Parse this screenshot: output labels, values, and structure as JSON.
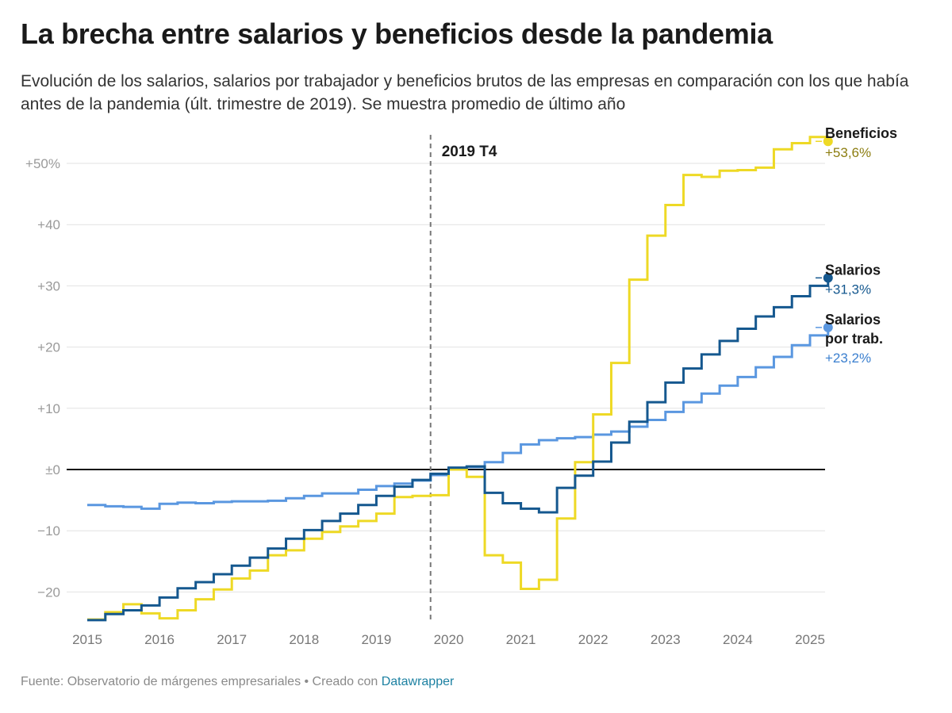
{
  "title": "La brecha entre salarios y beneficios desde la pandemia",
  "subtitle": "Evolución de los salarios, salarios por trabajador y beneficios brutos de las empresas en comparación con los que había antes de la pandemia (últ. trimestre de 2019). Se muestra promedio de último año",
  "footer": {
    "source": "Fuente: Observatorio de márgenes empresariales • Creado con ",
    "credit": "Datawrapper"
  },
  "chart_data": {
    "type": "line",
    "step": true,
    "x_start": 2015.0,
    "x_step": 0.25,
    "xlim": [
      2015,
      2025
    ],
    "ylim": [
      -25,
      55
    ],
    "x_ticks": [
      2015,
      2016,
      2017,
      2018,
      2019,
      2020,
      2021,
      2022,
      2023,
      2024,
      2025
    ],
    "y_ticks": [
      {
        "value": 50,
        "label": "+50%"
      },
      {
        "value": 40,
        "label": "+40"
      },
      {
        "value": 30,
        "label": "+30"
      },
      {
        "value": 20,
        "label": "+20"
      },
      {
        "value": 10,
        "label": "+10"
      },
      {
        "value": 0,
        "label": "±0"
      },
      {
        "value": -10,
        "label": "−10"
      },
      {
        "value": -20,
        "label": "−20"
      }
    ],
    "grid": true,
    "reference_line": {
      "x": 2019.75,
      "label": "2019 T4"
    },
    "colors": {
      "beneficios": "#eed925",
      "salarios": "#15588f",
      "salarios_por_trab": "#5a97e0"
    },
    "series": [
      {
        "key": "beneficios",
        "name": "Beneficios",
        "end_label": "+53,6%",
        "label_color": "#8c7d10",
        "color": "#eed925",
        "values": [
          -24.5,
          -23.3,
          -22,
          -23.5,
          -24.3,
          -23,
          -21.2,
          -19.6,
          -17.8,
          -16.5,
          -14,
          -13.2,
          -11.3,
          -10.2,
          -9.3,
          -8.4,
          -7.2,
          -4.5,
          -4.3,
          -4.2,
          0,
          -1.2,
          -14,
          -15.2,
          -19.5,
          -18,
          -8,
          1.2,
          9,
          17.4,
          31,
          38.2,
          43.2,
          48.1,
          47.8,
          48.8,
          48.9,
          49.3,
          52.3,
          53.3,
          54.3,
          53.6
        ]
      },
      {
        "key": "salarios",
        "name": "Salarios",
        "end_label": "+31,3%",
        "label_color": "#15588f",
        "color": "#15588f",
        "values": [
          -24.6,
          -23.6,
          -23,
          -22.2,
          -20.9,
          -19.4,
          -18.4,
          -17.1,
          -15.7,
          -14.4,
          -12.9,
          -11.3,
          -9.9,
          -8.4,
          -7.2,
          -5.8,
          -4.3,
          -2.8,
          -1.7,
          -0.7,
          0.3,
          0.5,
          -3.8,
          -5.5,
          -6.4,
          -7,
          -3,
          -1,
          1.3,
          4.4,
          7.8,
          11,
          14.2,
          16.5,
          18.8,
          21,
          23,
          25,
          26.5,
          28.3,
          30,
          31.3
        ]
      },
      {
        "key": "salarios_por_trab",
        "name_lines": [
          "Salarios",
          "por trab."
        ],
        "end_label": "+23,2%",
        "label_color": "#3a7fcf",
        "color": "#5a97e0",
        "values": [
          -5.8,
          -6,
          -6.1,
          -6.4,
          -5.6,
          -5.4,
          -5.5,
          -5.3,
          -5.2,
          -5.2,
          -5.1,
          -4.7,
          -4.3,
          -3.9,
          -3.9,
          -3.3,
          -2.7,
          -2.3,
          -1.8,
          -0.9,
          0,
          0.4,
          1.2,
          2.7,
          4.1,
          4.8,
          5.1,
          5.3,
          5.7,
          6.2,
          7,
          8.1,
          9.4,
          11,
          12.4,
          13.7,
          15.1,
          16.7,
          18.4,
          20.3,
          21.9,
          23.2
        ]
      }
    ]
  }
}
